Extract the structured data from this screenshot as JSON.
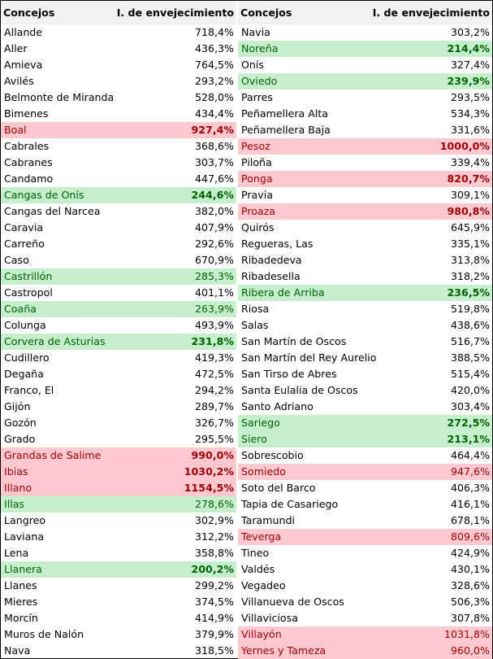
{
  "table": {
    "headers": {
      "concejo": "Concejos",
      "indice": "I. de envejecimiento"
    },
    "colors": {
      "green_bg": "#c6efce",
      "green_text": "#006100",
      "red_bg": "#ffc7ce",
      "red_text": "#9c0006",
      "header_bg": "#f2f2f2"
    },
    "left": [
      {
        "name": "Allande",
        "value": "718,4%",
        "hl": "",
        "bold": false
      },
      {
        "name": "Aller",
        "value": "436,3%",
        "hl": "",
        "bold": false
      },
      {
        "name": "Amieva",
        "value": "764,5%",
        "hl": "",
        "bold": false
      },
      {
        "name": "Avilés",
        "value": "293,2%",
        "hl": "",
        "bold": false
      },
      {
        "name": "Belmonte de Miranda",
        "value": "528,0%",
        "hl": "",
        "bold": false
      },
      {
        "name": "Bimenes",
        "value": "434,4%",
        "hl": "",
        "bold": false
      },
      {
        "name": "Boal",
        "value": "927,4%",
        "hl": "red",
        "bold": true
      },
      {
        "name": "Cabrales",
        "value": "368,6%",
        "hl": "",
        "bold": false
      },
      {
        "name": "Cabranes",
        "value": "303,7%",
        "hl": "",
        "bold": false
      },
      {
        "name": "Candamo",
        "value": "447,6%",
        "hl": "",
        "bold": false
      },
      {
        "name": "Cangas de Onís",
        "value": "244,6%",
        "hl": "green",
        "bold": true
      },
      {
        "name": "Cangas del Narcea",
        "value": "382,0%",
        "hl": "",
        "bold": false
      },
      {
        "name": "Caravia",
        "value": "407,9%",
        "hl": "",
        "bold": false
      },
      {
        "name": "Carreño",
        "value": "292,6%",
        "hl": "",
        "bold": false
      },
      {
        "name": "Caso",
        "value": "670,9%",
        "hl": "",
        "bold": false
      },
      {
        "name": "Castrillón",
        "value": "285,3%",
        "hl": "green",
        "bold": false
      },
      {
        "name": "Castropol",
        "value": "401,1%",
        "hl": "",
        "bold": false
      },
      {
        "name": "Coaña",
        "value": "263,9%",
        "hl": "green",
        "bold": false
      },
      {
        "name": "Colunga",
        "value": "493,9%",
        "hl": "",
        "bold": false
      },
      {
        "name": "Corvera de Asturias",
        "value": "231,8%",
        "hl": "green",
        "bold": true
      },
      {
        "name": "Cudillero",
        "value": "419,3%",
        "hl": "",
        "bold": false
      },
      {
        "name": "Degaña",
        "value": "472,5%",
        "hl": "",
        "bold": false
      },
      {
        "name": "Franco, El",
        "value": "294,2%",
        "hl": "",
        "bold": false
      },
      {
        "name": "Gijón",
        "value": "289,7%",
        "hl": "",
        "bold": false
      },
      {
        "name": "Gozón",
        "value": "326,7%",
        "hl": "",
        "bold": false
      },
      {
        "name": "Grado",
        "value": "295,5%",
        "hl": "",
        "bold": false
      },
      {
        "name": "Grandas de Salime",
        "value": "990,0%",
        "hl": "red",
        "bold": true
      },
      {
        "name": "Ibias",
        "value": "1030,2%",
        "hl": "red",
        "bold": true
      },
      {
        "name": "Illano",
        "value": "1154,5%",
        "hl": "red",
        "bold": true
      },
      {
        "name": "Illas",
        "value": "278,6%",
        "hl": "green",
        "bold": false
      },
      {
        "name": "Langreo",
        "value": "302,9%",
        "hl": "",
        "bold": false
      },
      {
        "name": "Laviana",
        "value": "312,2%",
        "hl": "",
        "bold": false
      },
      {
        "name": "Lena",
        "value": "358,8%",
        "hl": "",
        "bold": false
      },
      {
        "name": "Llanera",
        "value": "200,2%",
        "hl": "green",
        "bold": true
      },
      {
        "name": "Llanes",
        "value": "299,2%",
        "hl": "",
        "bold": false
      },
      {
        "name": "Mieres",
        "value": "374,5%",
        "hl": "",
        "bold": false
      },
      {
        "name": "Morcín",
        "value": "414,9%",
        "hl": "",
        "bold": false
      },
      {
        "name": "Muros de Nalón",
        "value": "379,9%",
        "hl": "",
        "bold": false
      },
      {
        "name": "Nava",
        "value": "318,5%",
        "hl": "",
        "bold": false
      }
    ],
    "right": [
      {
        "name": "Navia",
        "value": "303,2%",
        "hl": "",
        "bold": false
      },
      {
        "name": "Noreña",
        "value": "214,4%",
        "hl": "green",
        "bold": true
      },
      {
        "name": "Onís",
        "value": "327,4%",
        "hl": "",
        "bold": false
      },
      {
        "name": "Oviedo",
        "value": "239,9%",
        "hl": "green",
        "bold": true
      },
      {
        "name": "Parres",
        "value": "293,5%",
        "hl": "",
        "bold": false
      },
      {
        "name": "Peñamellera Alta",
        "value": "534,3%",
        "hl": "",
        "bold": false
      },
      {
        "name": "Peñamellera Baja",
        "value": "331,6%",
        "hl": "",
        "bold": false
      },
      {
        "name": "Pesoz",
        "value": "1000,0%",
        "hl": "red",
        "bold": true
      },
      {
        "name": "Piloña",
        "value": "339,4%",
        "hl": "",
        "bold": false
      },
      {
        "name": "Ponga",
        "value": "820,7%",
        "hl": "red",
        "bold": true
      },
      {
        "name": "Pravia",
        "value": "309,1%",
        "hl": "",
        "bold": false
      },
      {
        "name": "Proaza",
        "value": "980,8%",
        "hl": "red",
        "bold": true
      },
      {
        "name": "Quirós",
        "value": "645,9%",
        "hl": "",
        "bold": false
      },
      {
        "name": "Regueras, Las",
        "value": "335,1%",
        "hl": "",
        "bold": false
      },
      {
        "name": "Ribadedeva",
        "value": "313,8%",
        "hl": "",
        "bold": false
      },
      {
        "name": "Ribadesella",
        "value": "318,2%",
        "hl": "",
        "bold": false
      },
      {
        "name": "Ribera de Arriba",
        "value": "236,5%",
        "hl": "green",
        "bold": true
      },
      {
        "name": "Riosa",
        "value": "519,8%",
        "hl": "",
        "bold": false
      },
      {
        "name": "Salas",
        "value": "438,6%",
        "hl": "",
        "bold": false
      },
      {
        "name": "San Martín de Oscos",
        "value": "516,7%",
        "hl": "",
        "bold": false
      },
      {
        "name": "San Martín del Rey Aurelio",
        "value": "388,5%",
        "hl": "",
        "bold": false
      },
      {
        "name": "San Tirso de Abres",
        "value": "515,4%",
        "hl": "",
        "bold": false
      },
      {
        "name": "Santa Eulalia de Oscos",
        "value": "420,0%",
        "hl": "",
        "bold": false
      },
      {
        "name": "Santo Adriano",
        "value": "303,4%",
        "hl": "",
        "bold": false
      },
      {
        "name": "Sariego",
        "value": "272,5%",
        "hl": "green",
        "bold": true
      },
      {
        "name": "Siero",
        "value": "213,1%",
        "hl": "green",
        "bold": true
      },
      {
        "name": "Sobrescobio",
        "value": "464,4%",
        "hl": "",
        "bold": false
      },
      {
        "name": "Somiedo",
        "value": "947,6%",
        "hl": "red",
        "bold": false
      },
      {
        "name": "Soto del Barco",
        "value": "406,3%",
        "hl": "",
        "bold": false
      },
      {
        "name": "Tapia de Casariego",
        "value": "416,1%",
        "hl": "",
        "bold": false
      },
      {
        "name": "Taramundi",
        "value": "678,1%",
        "hl": "",
        "bold": false
      },
      {
        "name": "Teverga",
        "value": "809,6%",
        "hl": "red",
        "bold": false
      },
      {
        "name": "Tineo",
        "value": "424,9%",
        "hl": "",
        "bold": false
      },
      {
        "name": "Valdés",
        "value": "430,1%",
        "hl": "",
        "bold": false
      },
      {
        "name": "Vegadeo",
        "value": "328,6%",
        "hl": "",
        "bold": false
      },
      {
        "name": "Villanueva de Oscos",
        "value": "506,3%",
        "hl": "",
        "bold": false
      },
      {
        "name": "Villaviciosa",
        "value": "307,8%",
        "hl": "",
        "bold": false
      },
      {
        "name": "Villayón",
        "value": "1031,8%",
        "hl": "red",
        "bold": false
      },
      {
        "name": "Yernes y Tameza",
        "value": "960,0%",
        "hl": "red",
        "bold": false
      }
    ]
  }
}
